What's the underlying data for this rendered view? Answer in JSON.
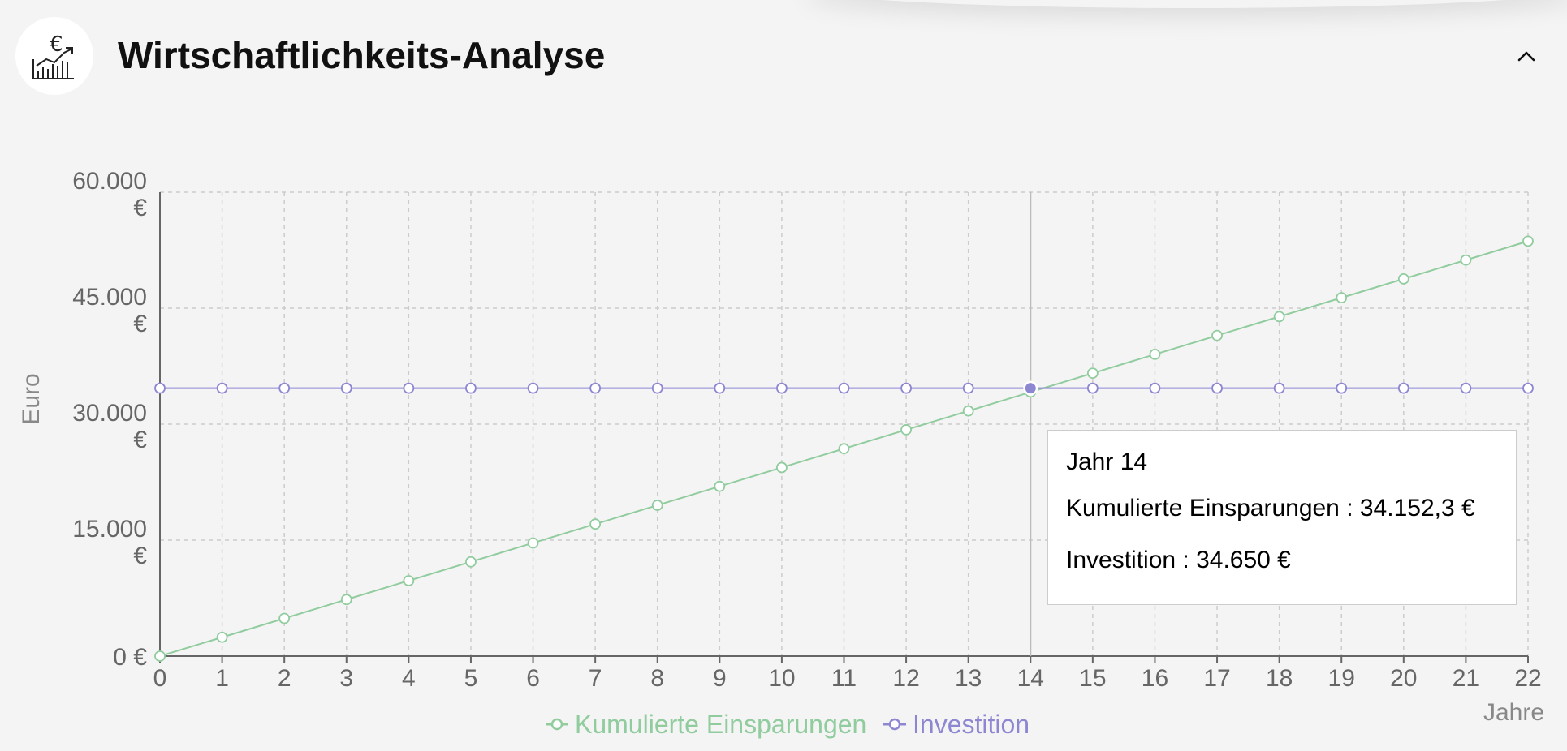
{
  "header": {
    "title": "Wirtschaftlichkeits-Analyse",
    "icon": "euro-chart-icon",
    "collapse_icon": "chevron-up-icon"
  },
  "chart_data": {
    "type": "line",
    "xlabel": "Jahre",
    "ylabel": "Euro",
    "x": [
      0,
      1,
      2,
      3,
      4,
      5,
      6,
      7,
      8,
      9,
      10,
      11,
      12,
      13,
      14,
      15,
      16,
      17,
      18,
      19,
      20,
      21,
      22
    ],
    "xlim": [
      0,
      22
    ],
    "ylim": [
      0,
      60000
    ],
    "y_ticks": [
      {
        "line1": "60.000",
        "line2": "€",
        "value": 60000
      },
      {
        "line1": "45.000",
        "line2": "€",
        "value": 45000
      },
      {
        "line1": "30.000",
        "line2": "€",
        "value": 30000
      },
      {
        "line1": "15.000",
        "line2": "€",
        "value": 15000
      },
      {
        "line1": "0 €",
        "line2": "",
        "value": 0
      }
    ],
    "grid": true,
    "series": [
      {
        "name": "Kumulierte Einsparungen",
        "color": "#91cc9f",
        "values": [
          0,
          2439.5,
          4879.0,
          7318.4,
          9757.9,
          12197.3,
          14636.8,
          17076.2,
          19515.6,
          21955.1,
          24394.5,
          26834.0,
          29273.4,
          31712.9,
          34152.3,
          36591.8,
          39031.2,
          41470.7,
          43910.1,
          46349.5,
          48789.0,
          51228.4,
          53667.9
        ]
      },
      {
        "name": "Investition",
        "color": "#8d87d2",
        "values": [
          34650,
          34650,
          34650,
          34650,
          34650,
          34650,
          34650,
          34650,
          34650,
          34650,
          34650,
          34650,
          34650,
          34650,
          34650,
          34650,
          34650,
          34650,
          34650,
          34650,
          34650,
          34650,
          34650
        ]
      }
    ],
    "legend_position": "bottom-center",
    "tooltip": {
      "title": "Jahr 14",
      "x": 14,
      "rows": [
        {
          "label": "Kumulierte Einsparungen : 34.152,3 €",
          "color": "#91cc9f"
        },
        {
          "label": "Investition : 34.650 €",
          "color": "#8d87d2"
        }
      ]
    }
  }
}
